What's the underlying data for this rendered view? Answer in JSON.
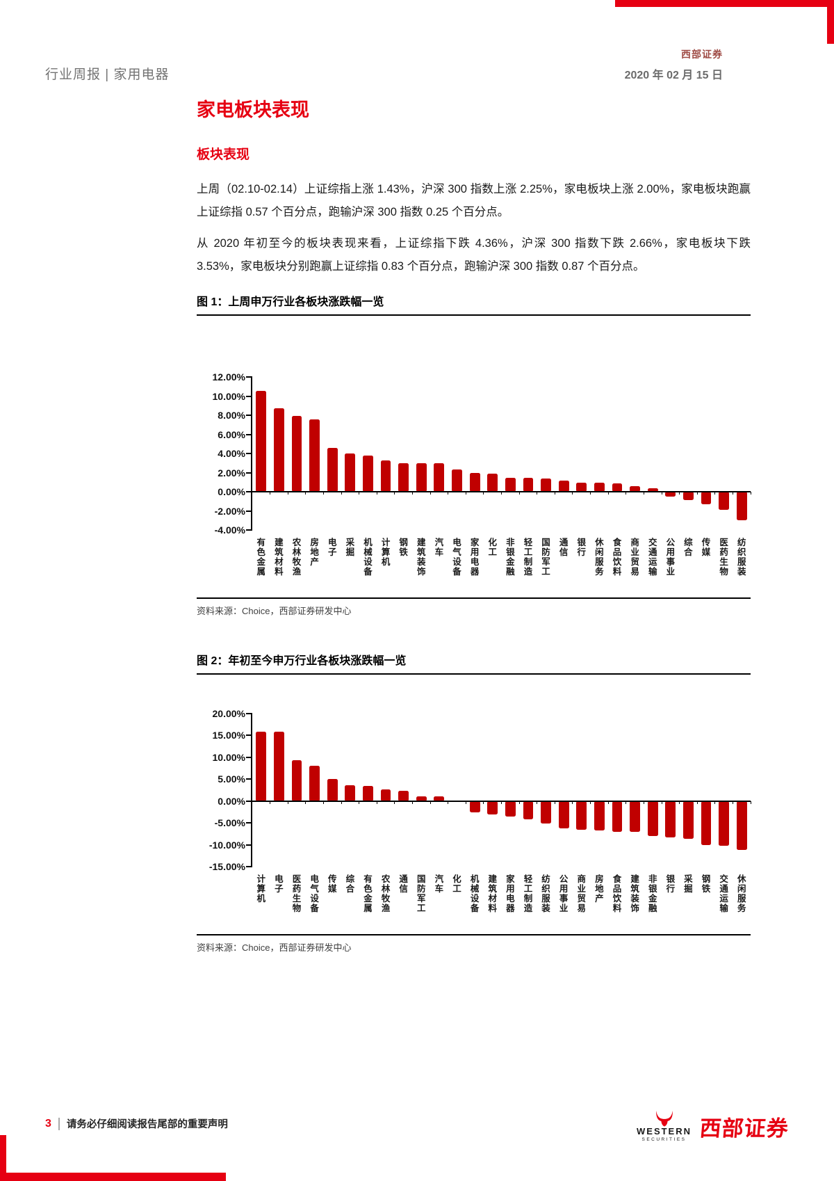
{
  "header": {
    "left_title": "行业周报 | 家用电器",
    "brand": "西部证券",
    "date": "2020 年 02 月 15 日"
  },
  "main": {
    "title": "家电板块表现",
    "subtitle": "板块表现",
    "paragraphs": [
      "上周（02.10-02.14）上证综指上涨 1.43%，沪深 300 指数上涨 2.25%，家电板块上涨 2.00%，家电板块跑赢上证综指 0.57 个百分点，跑输沪深 300 指数 0.25 个百分点。",
      "从 2020 年初至今的板块表现来看，上证综指下跌 4.36%，沪深 300 指数下跌 2.66%，家电板块下跌 3.53%，家电板块分别跑赢上证综指 0.83 个百分点，跑输沪深 300 指数 0.87 个百分点。"
    ]
  },
  "figures": [
    {
      "caption": "图 1：上周申万行业各板块涨跌幅一览",
      "source": "资料来源：Choice，西部证券研发中心"
    },
    {
      "caption": "图 2：年初至今申万行业各板块涨跌幅一览",
      "source": "资料来源：Choice，西部证券研发中心"
    }
  ],
  "chart_data": [
    {
      "type": "bar",
      "title": "上周申万行业各板块涨跌幅一览",
      "categories": [
        "有色金属",
        "建筑材料",
        "农林牧渔",
        "房地产",
        "电子",
        "采掘",
        "机械设备",
        "计算机",
        "钢铁",
        "建筑装饰",
        "汽车",
        "电气设备",
        "家用电器",
        "化工",
        "非银金融",
        "轻工制造",
        "国防军工",
        "通信",
        "银行",
        "休闲服务",
        "食品饮料",
        "商业贸易",
        "交通运输",
        "公用事业",
        "综合",
        "传媒",
        "医药生物",
        "纺织服装"
      ],
      "values": [
        10.55,
        8.75,
        7.95,
        7.6,
        4.6,
        4.0,
        3.8,
        3.25,
        3.0,
        2.95,
        2.95,
        2.3,
        2.0,
        1.9,
        1.45,
        1.42,
        1.38,
        1.15,
        0.98,
        0.92,
        0.85,
        0.6,
        0.38,
        -0.5,
        -0.9,
        -1.3,
        -1.9,
        -3.0
      ],
      "xlabel": "",
      "ylabel": "",
      "ylim": [
        -4,
        12
      ],
      "ytick_step": 2,
      "ytick_format": "percent_2dp",
      "grid": false,
      "legend": null,
      "bar_color": "#c00000"
    },
    {
      "type": "bar",
      "title": "年初至今申万行业各板块涨跌幅一览",
      "categories": [
        "计算机",
        "电子",
        "医药生物",
        "电气设备",
        "传媒",
        "综合",
        "有色金属",
        "农林牧渔",
        "通信",
        "国防军工",
        "汽车",
        "化工",
        "机械设备",
        "建筑材料",
        "家用电器",
        "轻工制造",
        "纺织服装",
        "公用事业",
        "商业贸易",
        "房地产",
        "食品饮料",
        "建筑装饰",
        "非银金融",
        "银行",
        "采掘",
        "钢铁",
        "交通运输",
        "休闲服务"
      ],
      "values": [
        15.9,
        15.85,
        9.4,
        8.0,
        5.1,
        3.6,
        3.4,
        2.6,
        2.3,
        1.1,
        1.0,
        -0.15,
        -2.6,
        -3.1,
        -3.53,
        -4.2,
        -5.2,
        -6.3,
        -6.5,
        -6.8,
        -7.0,
        -7.1,
        -8.0,
        -8.3,
        -8.7,
        -10.0,
        -10.3,
        -11.2
      ],
      "xlabel": "",
      "ylabel": "",
      "ylim": [
        -15,
        20
      ],
      "ytick_step": 5,
      "ytick_format": "percent_2dp",
      "grid": false,
      "legend": null,
      "bar_color": "#c00000"
    }
  ],
  "footer": {
    "page_number": "3",
    "disclaimer": "请务必仔细阅读报告尾部的重要声明",
    "logo_word": "WESTERN",
    "logo_sub": "SECURITIES",
    "brand": "西部证券"
  },
  "colors": {
    "accent_red": "#e60012",
    "bar_red": "#c00000",
    "header_gray": "#737373"
  }
}
